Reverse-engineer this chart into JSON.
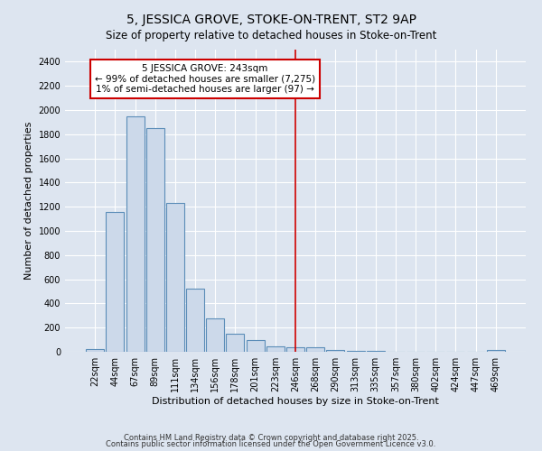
{
  "title": "5, JESSICA GROVE, STOKE-ON-TRENT, ST2 9AP",
  "subtitle": "Size of property relative to detached houses in Stoke-on-Trent",
  "xlabel": "Distribution of detached houses by size in Stoke-on-Trent",
  "ylabel": "Number of detached properties",
  "categories": [
    "22sqm",
    "44sqm",
    "67sqm",
    "89sqm",
    "111sqm",
    "134sqm",
    "156sqm",
    "178sqm",
    "201sqm",
    "223sqm",
    "246sqm",
    "268sqm",
    "290sqm",
    "313sqm",
    "335sqm",
    "357sqm",
    "380sqm",
    "402sqm",
    "424sqm",
    "447sqm",
    "469sqm"
  ],
  "values": [
    25,
    1160,
    1950,
    1850,
    1230,
    520,
    275,
    150,
    95,
    45,
    40,
    40,
    15,
    8,
    5,
    3,
    3,
    2,
    1,
    1,
    15
  ],
  "bar_color": "#ccd9ea",
  "bar_edge_color": "#5b8db8",
  "background_color": "#dde5f0",
  "grid_color": "#ffffff",
  "red_line_x": 10,
  "annotation_text": "5 JESSICA GROVE: 243sqm\n← 99% of detached houses are smaller (7,275)\n1% of semi-detached houses are larger (97) →",
  "annotation_box_color": "#ffffff",
  "annotation_box_edge_color": "#cc0000",
  "ylim": [
    0,
    2500
  ],
  "yticks": [
    0,
    200,
    400,
    600,
    800,
    1000,
    1200,
    1400,
    1600,
    1800,
    2000,
    2200,
    2400
  ],
  "footer1": "Contains HM Land Registry data © Crown copyright and database right 2025.",
  "footer2": "Contains public sector information licensed under the Open Government Licence v3.0.",
  "title_fontsize": 10,
  "subtitle_fontsize": 8.5,
  "axis_label_fontsize": 8,
  "tick_fontsize": 7,
  "annotation_fontsize": 7.5,
  "footer_fontsize": 6
}
